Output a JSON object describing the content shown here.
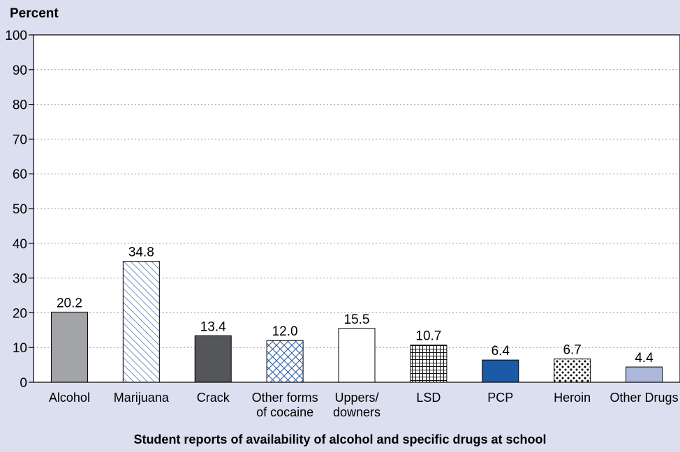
{
  "chart_data": {
    "type": "bar",
    "title": "Student reports of availability of alcohol and specific drugs at school",
    "ylabel": "Percent",
    "xlabel": "",
    "ylim": [
      0,
      100
    ],
    "yticks": [
      0,
      10,
      20,
      30,
      40,
      50,
      60,
      70,
      80,
      90,
      100
    ],
    "grid": true,
    "categories": [
      [
        "Alcohol"
      ],
      [
        "Marijuana"
      ],
      [
        "Crack"
      ],
      [
        "Other forms",
        "of cocaine"
      ],
      [
        "Uppers/",
        "downers"
      ],
      [
        "LSD"
      ],
      [
        "PCP"
      ],
      [
        "Heroin"
      ],
      [
        "Other Drugs"
      ]
    ],
    "values": [
      20.2,
      34.8,
      13.4,
      12.0,
      15.5,
      10.7,
      6.4,
      6.7,
      4.4
    ],
    "value_labels": [
      "20.2",
      "34.8",
      "13.4",
      "12.0",
      "15.5",
      "10.7",
      "6.4",
      "6.7",
      "4.4"
    ],
    "bar_fills": [
      "solid-gray",
      "diagonal-hatch",
      "solid-dark-gray",
      "crosshatch",
      "white",
      "grid",
      "solid-blue",
      "dots",
      "solid-light-blue"
    ],
    "colors": {
      "background": "#dcdfef",
      "plot_background": "#ffffff",
      "gray": "#a3a4a7",
      "dark_gray": "#55565a",
      "blue": "#1b5aa6",
      "light_blue": "#adb7dc",
      "hatch_blue": "#2a5da0"
    }
  }
}
